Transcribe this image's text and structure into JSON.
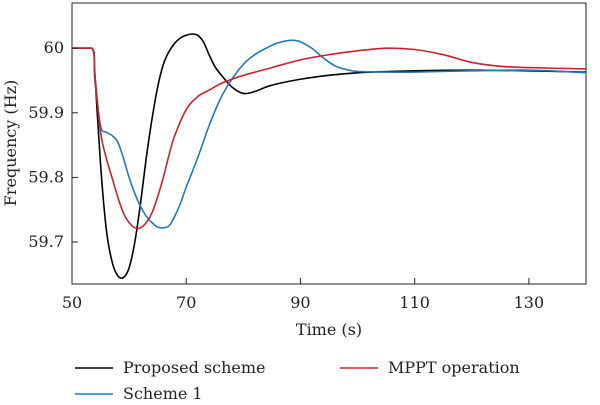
{
  "chart_data": {
    "type": "line",
    "title": "",
    "xlabel": "Time (s)",
    "ylabel": "Frequency (Hz)",
    "xlim": [
      50,
      140
    ],
    "ylim": [
      59.635,
      60.07
    ],
    "xticks": [
      50,
      70,
      90,
      110,
      130
    ],
    "yticks": [
      59.7,
      59.8,
      59.9,
      60.0
    ],
    "xtick_labels": [
      "50",
      "70",
      "90",
      "110",
      "130"
    ],
    "ytick_labels": [
      "59.7",
      "59.8",
      "59.9",
      "60"
    ],
    "grid": false,
    "legend_position": "bottom",
    "series": [
      {
        "name": "Proposed scheme",
        "color": "#000000",
        "x": [
          50,
          53.5,
          54,
          55,
          56,
          57,
          58,
          59,
          60,
          61,
          62,
          63,
          64,
          65,
          66,
          67,
          68,
          69,
          70,
          71,
          72,
          73,
          74,
          75,
          76,
          78,
          80,
          82,
          84,
          86,
          90,
          95,
          100,
          110,
          120,
          130,
          140
        ],
        "y": [
          60.0,
          60.0,
          59.96,
          59.82,
          59.72,
          59.67,
          59.648,
          59.645,
          59.66,
          59.7,
          59.76,
          59.83,
          59.89,
          59.94,
          59.975,
          59.995,
          60.008,
          60.016,
          60.02,
          60.022,
          60.02,
          60.01,
          59.99,
          59.972,
          59.96,
          59.94,
          59.93,
          59.933,
          59.94,
          59.945,
          59.952,
          59.958,
          59.962,
          59.965,
          59.966,
          59.965,
          59.963
        ]
      },
      {
        "name": "Scheme 1",
        "color": "#1f7ab8",
        "x": [
          50,
          53.5,
          54,
          55,
          56,
          57,
          58,
          59,
          60,
          61,
          62,
          63,
          64,
          65,
          66,
          67,
          68,
          69,
          70,
          72,
          74,
          76,
          78,
          80,
          82,
          84,
          86,
          88,
          89,
          90,
          92,
          94,
          96,
          98,
          100,
          105,
          110,
          120,
          130,
          140
        ],
        "y": [
          60.0,
          60.0,
          59.95,
          59.88,
          59.87,
          59.865,
          59.855,
          59.83,
          59.8,
          59.775,
          59.755,
          59.74,
          59.73,
          59.723,
          59.722,
          59.725,
          59.74,
          59.76,
          59.785,
          59.83,
          59.88,
          59.922,
          59.952,
          59.975,
          59.99,
          60.0,
          60.008,
          60.012,
          60.012,
          60.01,
          60.0,
          59.985,
          59.973,
          59.967,
          59.964,
          59.963,
          59.963,
          59.965,
          59.966,
          59.962
        ]
      },
      {
        "name": "MPPT operation",
        "color": "#c8232c",
        "x": [
          50,
          53.5,
          54,
          55,
          56,
          57,
          58,
          59,
          60,
          61,
          62,
          63,
          64,
          65,
          66,
          67,
          68,
          70,
          72,
          74,
          76,
          78,
          80,
          85,
          90,
          95,
          100,
          105,
          110,
          115,
          120,
          125,
          130,
          140
        ],
        "y": [
          60.0,
          60.0,
          59.96,
          59.87,
          59.83,
          59.8,
          59.77,
          59.745,
          59.73,
          59.722,
          59.722,
          59.73,
          59.745,
          59.77,
          59.8,
          59.835,
          59.865,
          59.905,
          59.925,
          59.935,
          59.945,
          59.952,
          59.958,
          59.97,
          59.982,
          59.99,
          59.996,
          60.0,
          59.998,
          59.99,
          59.978,
          59.972,
          59.97,
          59.968
        ]
      }
    ]
  }
}
